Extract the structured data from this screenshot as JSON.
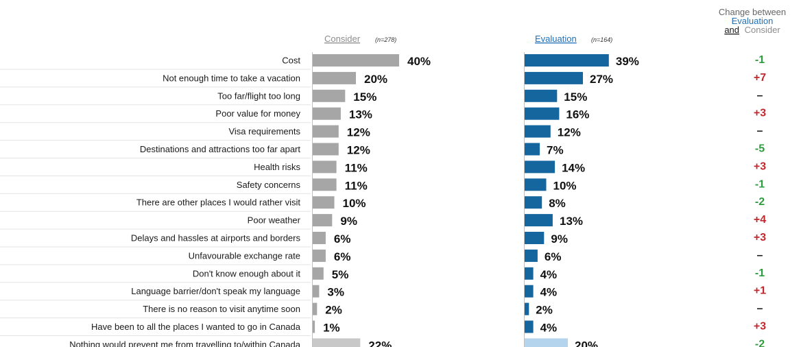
{
  "headers": {
    "consider": {
      "label": "Consider",
      "n": "(n=278)"
    },
    "evaluation": {
      "label": "Evaluation",
      "n": "(n=164)"
    },
    "change": {
      "line1": "Change  between",
      "line2": "Evaluation",
      "line3_a": "and",
      "line3_b": "Consider"
    }
  },
  "colors": {
    "consider_bar": "#a6a6a6",
    "consider_bar_last": "#c8c8c8",
    "evaluation_bar": "#15659f",
    "evaluation_bar_last": "#b4d4ee",
    "consider_header": "#8c8c8c",
    "evaluation_header": "#1f70b8",
    "change_positive": "#c0282d",
    "change_negative": "#2e9b3e",
    "change_neutral": "#1a1a1a"
  },
  "chart_data": {
    "type": "bar",
    "orientation": "horizontal",
    "categories": [
      "Cost",
      "Not enough time to take a vacation",
      "Too far/flight too long",
      "Poor value for money",
      "Visa requirements",
      "Destinations and attractions too far apart",
      "Health risks",
      "Safety concerns",
      "There are other places I would rather visit",
      "Poor weather",
      "Delays and hassles at airports and borders",
      "Unfavourable exchange rate",
      "Don't know enough about it",
      "Language barrier/don't speak my language",
      "There is no reason to visit anytime soon",
      "Have been to  all the places I wanted to go in Canada",
      "Nothing would prevent me from travelling to/within Canada"
    ],
    "series": [
      {
        "name": "Consider",
        "values": [
          40,
          20,
          15,
          13,
          12,
          12,
          11,
          11,
          10,
          9,
          6,
          6,
          5,
          3,
          2,
          1,
          22
        ]
      },
      {
        "name": "Evaluation",
        "values": [
          39,
          27,
          15,
          16,
          12,
          7,
          14,
          10,
          8,
          13,
          9,
          6,
          4,
          4,
          2,
          4,
          20
        ]
      }
    ],
    "value_labels": {
      "consider": [
        "40%",
        "20%",
        "15%",
        "13%",
        "12%",
        "12%",
        "11%",
        "11%",
        "10%",
        "9%",
        "6%",
        "6%",
        "5%",
        "3%",
        "2%",
        "1%",
        "22%"
      ],
      "evaluation": [
        "39%",
        "27%",
        "15%",
        "16%",
        "12%",
        "7%",
        "14%",
        "10%",
        "8%",
        "13%",
        "9%",
        "6%",
        "4%",
        "4%",
        "2%",
        "4%",
        "20%"
      ]
    },
    "change": [
      "-1",
      "+7",
      "–",
      "+3",
      "–",
      "-5",
      "+3",
      "-1",
      "-2",
      "+4",
      "+3",
      "–",
      "-1",
      "+1",
      "–",
      "+3",
      "-2"
    ],
    "xlim": [
      0,
      40
    ],
    "grid": false,
    "legend": "top"
  }
}
